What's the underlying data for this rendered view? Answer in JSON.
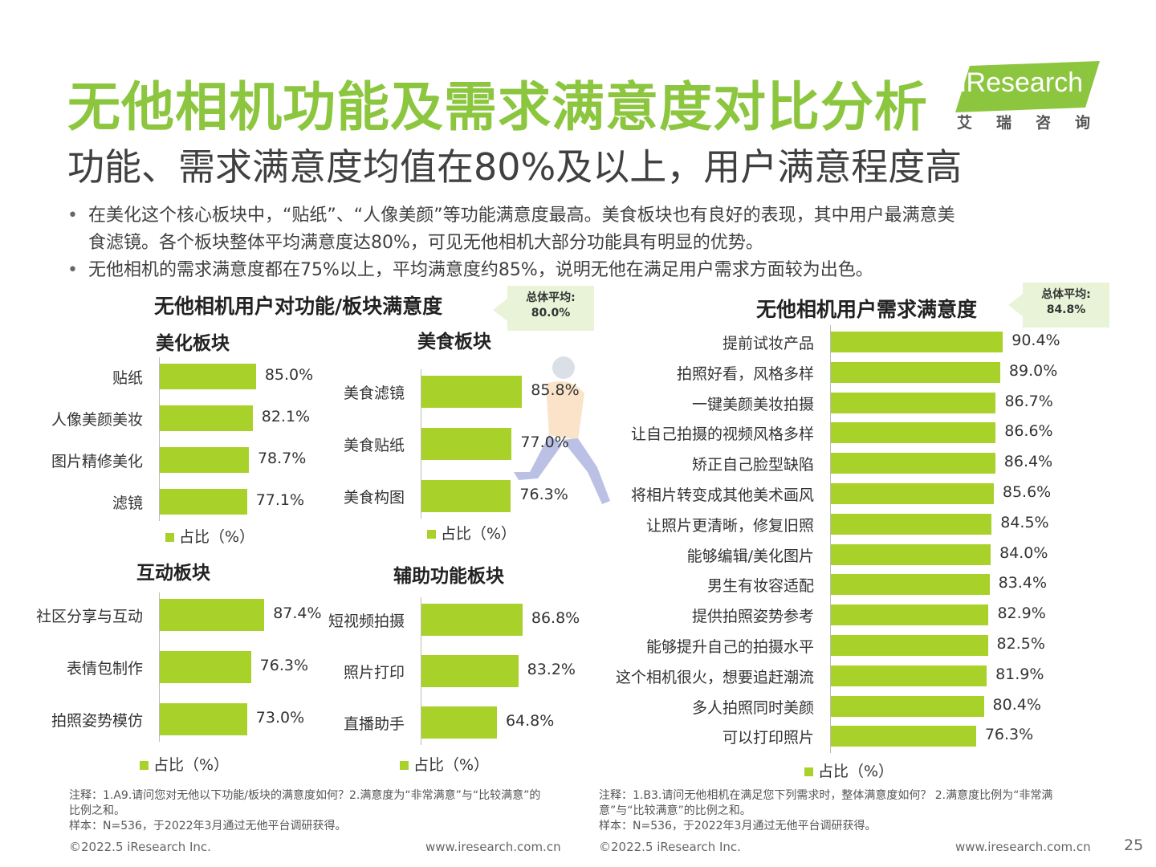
{
  "header": {
    "title": "无他相机功能及需求满意度对比分析",
    "subtitle": "功能、需求满意度均值在80%及以上，用户满意程度高",
    "logo_text": "iResearch",
    "logo_cn": "艾瑞咨询"
  },
  "bullets": [
    {
      "line1": "在美化这个核心板块中，“贴纸”、“人像美颜”等功能满意度最高。美食板块也有良好的表现，其中用户最满意美",
      "line2": "食滤镜。各个板块整体平均满意度达80%，可见无他相机大部分功能具有明显的优势。"
    },
    {
      "line1": "无他相机的需求满意度都在75%以上，平均满意度约85%，说明无他在满足用户需求方面较为出色。"
    }
  ],
  "left_panel": {
    "title": "无他相机用户对功能/板块满意度",
    "avg_label": "总体平均:",
    "avg_value": "80.0%",
    "legend": "占比（%）"
  },
  "right_panel": {
    "title": "无他相机用户需求满意度",
    "avg_label": "总体平均:",
    "avg_value": "84.8%",
    "legend": "占比（%）"
  },
  "chart_data": [
    {
      "type": "bar",
      "orientation": "horizontal",
      "title": "美化板块",
      "categories": [
        "贴纸",
        "人像美颜美妆",
        "图片精修美化",
        "滤镜"
      ],
      "values": [
        85.0,
        82.1,
        78.7,
        77.1
      ],
      "labels": [
        "85.0%",
        "82.1%",
        "78.7%",
        "77.1%"
      ],
      "series_name": "占比（%）",
      "legend": "bottom"
    },
    {
      "type": "bar",
      "orientation": "horizontal",
      "title": "美食板块",
      "categories": [
        "美食滤镜",
        "美食贴纸",
        "美食构图"
      ],
      "values": [
        85.8,
        77.0,
        76.3
      ],
      "labels": [
        "85.8%",
        "77.0%",
        "76.3%"
      ],
      "series_name": "占比（%）",
      "legend": "bottom"
    },
    {
      "type": "bar",
      "orientation": "horizontal",
      "title": "互动板块",
      "categories": [
        "社区分享与互动",
        "表情包制作",
        "拍照姿势模仿"
      ],
      "values": [
        87.4,
        76.3,
        73.0
      ],
      "labels": [
        "87.4%",
        "76.3%",
        "73.0%"
      ],
      "series_name": "占比（%）",
      "legend": "bottom"
    },
    {
      "type": "bar",
      "orientation": "horizontal",
      "title": "辅助功能板块",
      "categories": [
        "短视频拍摄",
        "照片打印",
        "直播助手"
      ],
      "values": [
        86.8,
        83.2,
        64.8
      ],
      "labels": [
        "86.8%",
        "83.2%",
        "64.8%"
      ],
      "series_name": "占比（%）",
      "legend": "bottom"
    },
    {
      "type": "bar",
      "orientation": "horizontal",
      "title": "无他相机用户需求满意度",
      "categories": [
        "提前试妆产品",
        "拍照好看，风格多样",
        "一键美颜美妆拍摄",
        "让自己拍摄的视频风格多样",
        "矫正自己脸型缺陷",
        "将相片转变成其他美术画风",
        "让照片更清晰，修复旧照",
        "能够编辑/美化图片",
        "男生有妆容适配",
        "提供拍照姿势参考",
        "能够提升自己的拍摄水平",
        "这个相机很火，想要追赶潮流",
        "多人拍照同时美颜",
        "可以打印照片"
      ],
      "values": [
        90.4,
        89.0,
        86.7,
        86.6,
        86.4,
        85.6,
        84.5,
        84.0,
        83.4,
        82.9,
        82.5,
        81.9,
        80.4,
        76.3
      ],
      "labels": [
        "90.4%",
        "89.0%",
        "86.7%",
        "86.6%",
        "86.4%",
        "85.6%",
        "84.5%",
        "84.0%",
        "83.4%",
        "82.9%",
        "82.5%",
        "81.9%",
        "80.4%",
        "76.3%"
      ],
      "series_name": "占比（%）",
      "legend": "bottom"
    }
  ],
  "notes": {
    "left_note": "注释：1.A9.请问您对无他以下功能/板块的满意度如何？2.满意度为“非常满意”与“比较满意”的比例之和。",
    "left_sample": "样本：N=536，于2022年3月通过无他平台调研获得。",
    "right_note": "注释：1.B3.请问无他相机在满足您下列需求时，整体满意度如何？ 2.满意度比例为“非常满意”与“比较满意”的比例之和。",
    "right_sample": "样本：N=536，于2022年3月通过无他平台调研获得。"
  },
  "footer": {
    "copyright_left": "©2022.5 iResearch Inc.",
    "site_left": "www.iresearch.com.cn",
    "copyright_right": "©2022.5 iResearch Inc.",
    "site_right": "www.iresearch.com.cn",
    "page_number": "25"
  },
  "colors": {
    "accent": "#8cc63f",
    "bar": "#a8d22a",
    "avg_box": "#e8f3d8"
  }
}
